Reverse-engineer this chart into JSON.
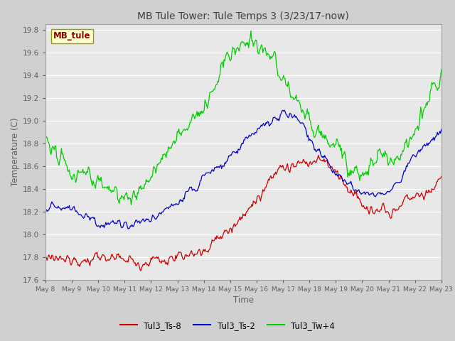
{
  "title": "MB Tule Tower: Tule Temps 3 (3/23/17-now)",
  "xlabel": "Time",
  "ylabel": "Temperature (C)",
  "ylim": [
    17.6,
    19.85
  ],
  "xlim": [
    0,
    15
  ],
  "x_tick_labels": [
    "May 8",
    "May 9",
    "May 10",
    "May 11",
    "May 12",
    "May 13",
    "May 14",
    "May 15",
    "May 16",
    "May 17",
    "May 18",
    "May 19",
    "May 20",
    "May 21",
    "May 22",
    "May 23"
  ],
  "legend_labels": [
    "Tul3_Ts-8",
    "Tul3_Ts-2",
    "Tul3_Tw+4"
  ],
  "line_colors": [
    "#cc0000",
    "#0000cc",
    "#00cc00"
  ],
  "inset_label": "MB_tule",
  "inset_bg": "#ffffcc",
  "inset_text_color": "#880000",
  "fig_bg": "#d0d0d0",
  "plot_bg": "#e8e8e8",
  "grid_color": "#ffffff",
  "title_color": "#404040",
  "axis_label_color": "#606060",
  "tick_label_color": "#606060"
}
